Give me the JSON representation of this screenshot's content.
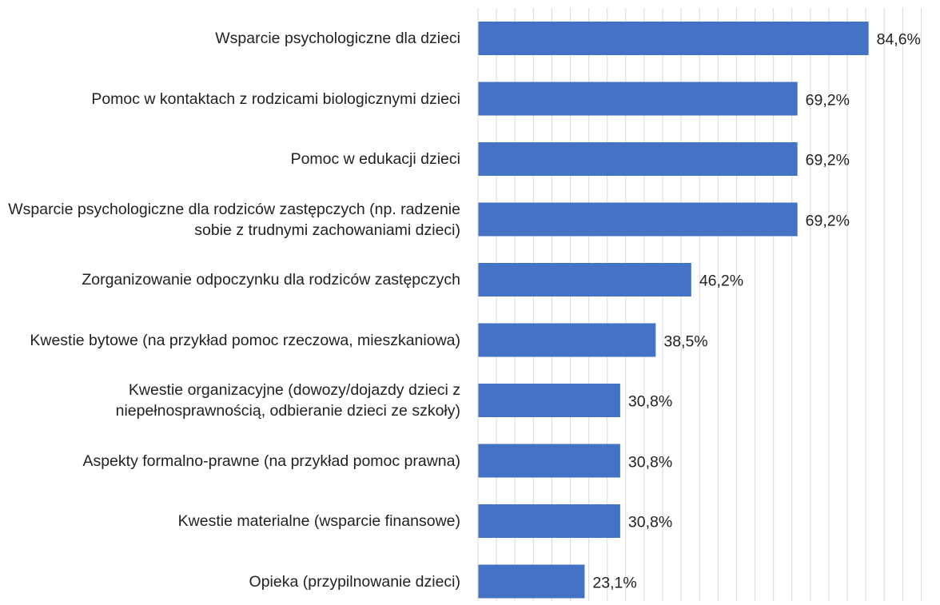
{
  "chart_data": {
    "type": "barh",
    "categories": [
      "Wsparcie psychologiczne dla dzieci",
      "Pomoc w kontaktach z rodzicami biologicznymi dzieci",
      "Pomoc w edukacji dzieci",
      "Wsparcie psychologiczne dla rodziców zastępczych (np. radzenie sobie z trudnymi zachowaniami dzieci)",
      "Zorganizowanie odpoczynku dla rodziców zastępczych",
      "Kwestie bytowe (na przykład pomoc rzeczowa, mieszkaniowa)",
      "Kwestie organizacyjne (dowozy/dojazdy dzieci z niepełnosprawnością, odbieranie dzieci ze szkoły)",
      "Aspekty formalno-prawne (na przykład pomoc prawna)",
      "Kwestie materialne (wsparcie finansowe)",
      "Opieka (przypilnowanie dzieci)"
    ],
    "values": [
      84.6,
      69.2,
      69.2,
      69.2,
      46.2,
      38.5,
      30.8,
      30.8,
      30.8,
      23.1
    ],
    "value_labels": [
      "84,6%",
      "69,2%",
      "69,2%",
      "69,2%",
      "46,2%",
      "38,5%",
      "30,8%",
      "30,8%",
      "30,8%",
      "23,1%"
    ],
    "color": "#4472c4",
    "xlim": [
      0,
      98
    ],
    "xticks": [
      0,
      4,
      8,
      12,
      16,
      20,
      24,
      28,
      32,
      36,
      40,
      44,
      48,
      52,
      56,
      60,
      64,
      68,
      72,
      76,
      80,
      84,
      88,
      92,
      96
    ],
    "grid": true
  }
}
